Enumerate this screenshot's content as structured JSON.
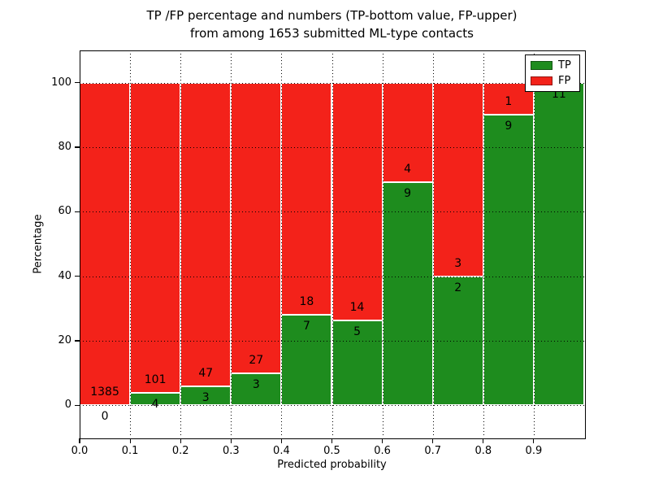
{
  "figure": {
    "title_line1": "TP /FP percentage and numbers (TP-bottom value, FP-upper)",
    "title_line2": "from among 1653 submitted ML-type contacts"
  },
  "axes": {
    "xlabel": "Predicted probability",
    "ylabel": "Percentage",
    "x_tick_labels": [
      "0.0",
      "0.1",
      "0.2",
      "0.3",
      "0.4",
      "0.5",
      "0.6",
      "0.7",
      "0.8",
      "0.9"
    ],
    "y_tick_labels": [
      "0",
      "20",
      "40",
      "60",
      "80",
      "100"
    ]
  },
  "legend": {
    "position": "upper right",
    "items": [
      {
        "label": "TP",
        "color": "#1e8c1e"
      },
      {
        "label": "FP",
        "color": "#f3221a"
      }
    ]
  },
  "chart_data": {
    "type": "bar",
    "stacked": true,
    "normalized": "each bin stacked to 100 percent",
    "title": "TP /FP percentage and numbers (TP-bottom value, FP-upper) from among 1653 submitted ML-type contacts",
    "xlabel": "Predicted probability",
    "ylabel": "Percentage",
    "xlim": [
      0.0,
      1.0
    ],
    "ylim": [
      -10,
      110
    ],
    "x_ticks": [
      0.0,
      0.1,
      0.2,
      0.3,
      0.4,
      0.5,
      0.6,
      0.7,
      0.8,
      0.9
    ],
    "y_ticks": [
      0,
      20,
      40,
      60,
      80,
      100
    ],
    "grid": true,
    "legend_position": "upper right",
    "bin_edges": [
      0.0,
      0.1,
      0.2,
      0.3,
      0.4,
      0.5,
      0.6,
      0.7,
      0.8,
      0.9,
      1.0
    ],
    "bin_labels": [
      "0.0-0.1",
      "0.1-0.2",
      "0.2-0.3",
      "0.3-0.4",
      "0.4-0.5",
      "0.5-0.6",
      "0.6-0.7",
      "0.7-0.8",
      "0.8-0.9",
      "0.9-1.0"
    ],
    "series": [
      {
        "name": "TP",
        "color": "#1e8c1e",
        "counts": [
          0,
          4,
          3,
          3,
          7,
          5,
          9,
          2,
          9,
          11
        ],
        "percent": [
          0,
          3.81,
          6.0,
          10.0,
          28.0,
          26.32,
          69.23,
          40.0,
          90.0,
          100.0
        ]
      },
      {
        "name": "FP",
        "color": "#f3221a",
        "counts": [
          1385,
          101,
          47,
          27,
          18,
          14,
          4,
          3,
          1,
          0
        ],
        "percent": [
          100,
          96.19,
          94.0,
          90.0,
          72.0,
          73.68,
          30.77,
          60.0,
          10.0,
          0
        ]
      }
    ],
    "bar_value_labels": {
      "tp": [
        "0",
        "4",
        "3",
        "3",
        "7",
        "5",
        "9",
        "2",
        "9",
        "11"
      ],
      "fp": [
        "1385",
        "101",
        "47",
        "27",
        "18",
        "14",
        "4",
        "3",
        "1",
        ""
      ]
    },
    "total_contacts": 1653
  }
}
